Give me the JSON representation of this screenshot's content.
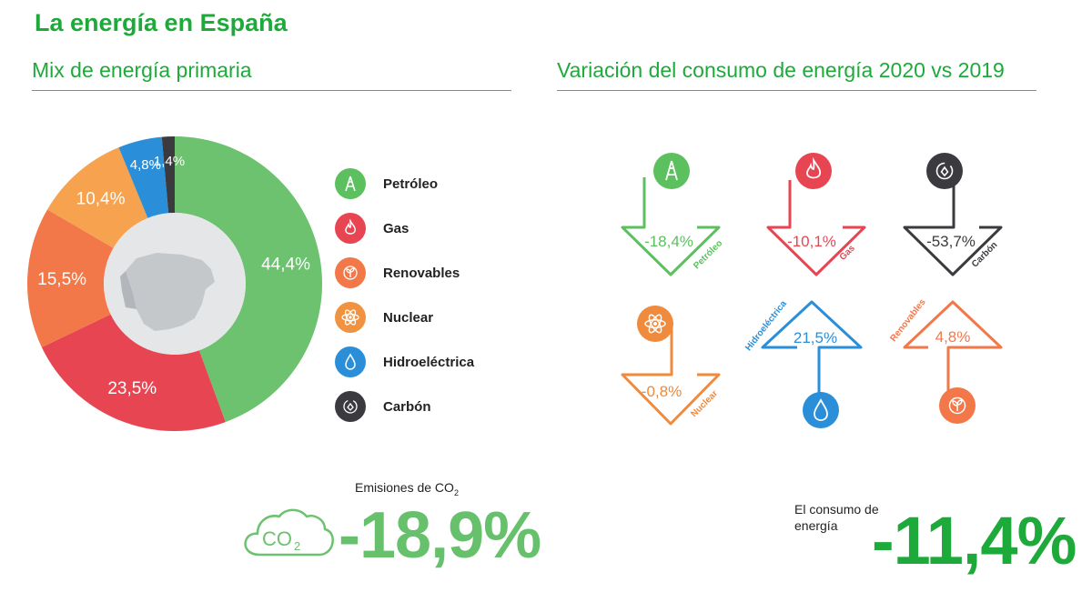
{
  "title": "La energía en España",
  "left_section": {
    "heading": "Mix de energía primaria"
  },
  "right_section": {
    "heading": "Variación del consumo de energía 2020 vs 2019"
  },
  "colors": {
    "petroleo": "#6cc26f",
    "gas": "#e84552",
    "renovables": "#f2784a",
    "nuclear": "#f6a24f",
    "hidroelectrica": "#2a8fd8",
    "carbon": "#3b3b3f",
    "title_green": "#1eaa3b"
  },
  "chart_data": [
    {
      "type": "pie",
      "variant": "donut",
      "title": "Mix de energía primaria",
      "categories": [
        "Petróleo",
        "Gas",
        "Renovables",
        "Nuclear",
        "Hidroeléctrica",
        "Carbón"
      ],
      "values": [
        44.4,
        23.5,
        15.5,
        10.4,
        4.8,
        1.4
      ],
      "value_labels": [
        "44,4%",
        "23,5%",
        "15,5%",
        "10,4%",
        "4,8%",
        "1,4%"
      ],
      "slice_colors": [
        "#6cc26f",
        "#e84552",
        "#f2784a",
        "#f6a24f",
        "#2a8fd8",
        "#3b3b3f"
      ],
      "center_image": "spain-map",
      "legend_position": "right"
    },
    {
      "type": "bar",
      "variant": "arrow-infographic",
      "title": "Variación del consumo de energía 2020 vs 2019",
      "categories": [
        "Petróleo",
        "Gas",
        "Carbón",
        "Nuclear",
        "Hidroeléctrica",
        "Renovables"
      ],
      "values": [
        -18.4,
        -10.1,
        -53.7,
        -0.8,
        21.5,
        4.8
      ],
      "value_labels": [
        "-18,4%",
        "-10,1%",
        "-53,7%",
        "-0,8%",
        "21,5%",
        "4,8%"
      ],
      "colors": [
        "#5cc05f",
        "#e84552",
        "#3b3b3f",
        "#f08a3c",
        "#2a8fd8",
        "#f2784a"
      ]
    }
  ],
  "legend": [
    {
      "label": "Petróleo",
      "icon": "oil-derrick-icon",
      "color": "#5cc05f"
    },
    {
      "label": "Gas",
      "icon": "flame-icon",
      "color": "#e84552"
    },
    {
      "label": "Renovables",
      "icon": "sprout-icon",
      "color": "#f2784a"
    },
    {
      "label": "Nuclear",
      "icon": "atom-icon",
      "color": "#f0923f"
    },
    {
      "label": "Hidroeléctrica",
      "icon": "water-drop-icon",
      "color": "#2a8fd8"
    },
    {
      "label": "Carbón",
      "icon": "carbon-icon",
      "color": "#3b3b3f"
    }
  ],
  "variation": {
    "items": [
      {
        "label": "Petróleo",
        "value": "-18,4%",
        "icon": "oil-derrick-icon",
        "color": "#5cc05f",
        "direction": "down"
      },
      {
        "label": "Gas",
        "value": "-10,1%",
        "icon": "flame-icon",
        "color": "#e84552",
        "direction": "down"
      },
      {
        "label": "Carbón",
        "value": "-53,7%",
        "icon": "carbon-icon",
        "color": "#3b3b3f",
        "direction": "down"
      },
      {
        "label": "Nuclear",
        "value": "-0,8%",
        "icon": "atom-icon",
        "color": "#f08a3c",
        "direction": "down"
      },
      {
        "label": "Hidroeléctrica",
        "value": "21,5%",
        "icon": "water-drop-icon",
        "color": "#2a8fd8",
        "direction": "up"
      },
      {
        "label": "Renovables",
        "value": "4,8%",
        "icon": "sprout-icon",
        "color": "#f2784a",
        "direction": "up"
      }
    ]
  },
  "emissions": {
    "label": "Emisiones de CO",
    "label_sub": "2",
    "value": "-18,9%",
    "icon_text": "CO",
    "icon_sub": "2",
    "icon": "co2-cloud-icon"
  },
  "consumption": {
    "label": "El consumo de energía",
    "value": "-11,4%"
  }
}
